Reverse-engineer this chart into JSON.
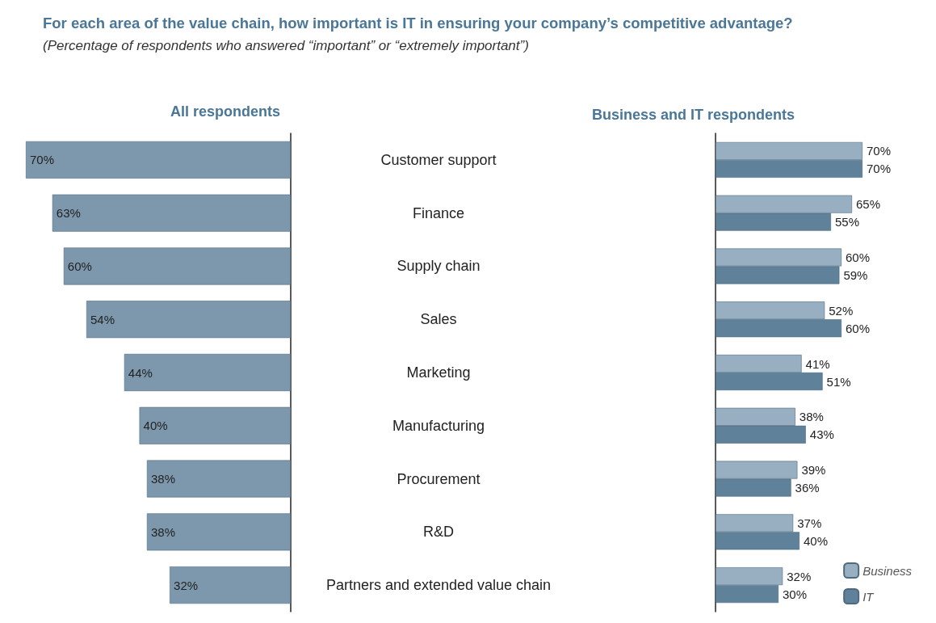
{
  "chart_data": [
    {
      "type": "bar",
      "orientation": "horizontal",
      "title": "For each area of the value chain, how important is IT in ensuring your company’s competitive advantage?",
      "subtitle": "(Percentage of respondents who answered “important” or “extremely important”)",
      "annotations": [
        "All respondents"
      ],
      "categories": [
        "Customer support",
        "Finance",
        "Supply chain",
        "Sales",
        "Marketing",
        "Manufacturing",
        "Procurement",
        "R&D",
        "Partners and extended value chain"
      ],
      "series": [
        {
          "color": "#7d98ad",
          "values": [
            70,
            63,
            60,
            54,
            44,
            40,
            38,
            38,
            32
          ],
          "value_labels": [
            "70%",
            "63%",
            "60%",
            "54%",
            "44%",
            "40%",
            "38%",
            "38%",
            "32%"
          ]
        }
      ]
    },
    {
      "type": "bar",
      "orientation": "horizontal",
      "title": "Business and IT respondents",
      "legend": "bottom right",
      "categories": [
        null,
        null,
        null,
        null,
        null,
        null,
        null,
        null,
        null
      ],
      "series": [
        {
          "name": "Business",
          "color": "#98afc2",
          "values": [
            70,
            65,
            60,
            52,
            41,
            38,
            39,
            37,
            32
          ],
          "value_labels": [
            "70%",
            "65%",
            "60%",
            "52%",
            "41%",
            "38%",
            "39%",
            "37%",
            "32%"
          ]
        },
        {
          "name": "IT",
          "color": "#5f8199",
          "values": [
            70,
            55,
            59,
            60,
            51,
            43,
            36,
            40,
            30
          ],
          "value_labels": [
            "70%",
            "55%",
            "59%",
            "60%",
            "51%",
            "43%",
            "36%",
            "40%",
            "30%"
          ]
        }
      ]
    }
  ]
}
